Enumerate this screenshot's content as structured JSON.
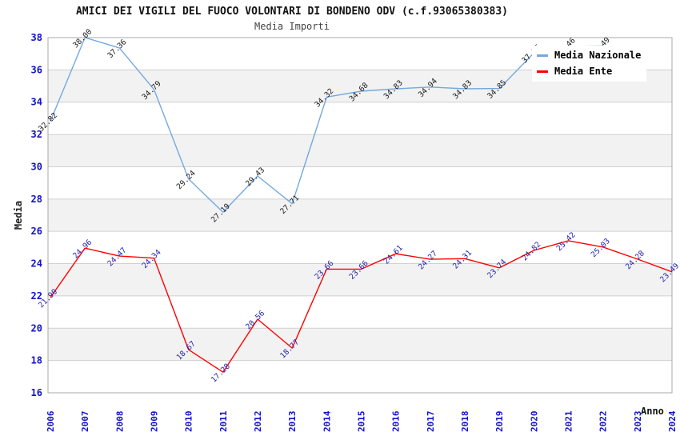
{
  "chart_data": {
    "type": "line",
    "title": "AMICI DEI VIGILI DEL FUOCO VOLONTARI DI BONDENO ODV (c.f.93065380383)",
    "subtitle": "Media Importi",
    "xlabel": "Anno",
    "ylabel": "Media",
    "x": [
      2006,
      2007,
      2008,
      2009,
      2010,
      2011,
      2012,
      2013,
      2014,
      2015,
      2016,
      2017,
      2018,
      2019,
      2020,
      2021,
      2022,
      2023,
      2024
    ],
    "series": [
      {
        "name": "Media Nazionale",
        "color": "#74a9de",
        "label_color": "#1a1a1a",
        "values": [
          32.82,
          38.0,
          37.36,
          34.79,
          29.24,
          27.19,
          29.43,
          27.71,
          34.32,
          34.68,
          34.83,
          34.94,
          34.83,
          34.85,
          37.05,
          37.46,
          37.49,
          null,
          null
        ]
      },
      {
        "name": "Media Ente",
        "color": "#ff0000",
        "label_color": "#2222b0",
        "values": [
          21.9,
          24.96,
          24.47,
          24.34,
          18.67,
          17.28,
          20.56,
          18.77,
          23.66,
          23.66,
          24.61,
          24.27,
          24.31,
          23.74,
          24.82,
          25.42,
          25.03,
          24.28,
          23.49
        ]
      }
    ],
    "ylim": [
      16,
      38
    ],
    "yticks": [
      16,
      18,
      20,
      22,
      24,
      26,
      28,
      30,
      32,
      34,
      36,
      38
    ],
    "grid": "horizontal",
    "legend_position": "top-right",
    "colors": {
      "axis_tick_text": "#1111cc",
      "band_fill": "#f2f2f2",
      "grid_line": "#d0d0d0",
      "plot_border": "#a8a8a8",
      "title_text": "#111111",
      "subtitle_text": "#444444"
    }
  }
}
